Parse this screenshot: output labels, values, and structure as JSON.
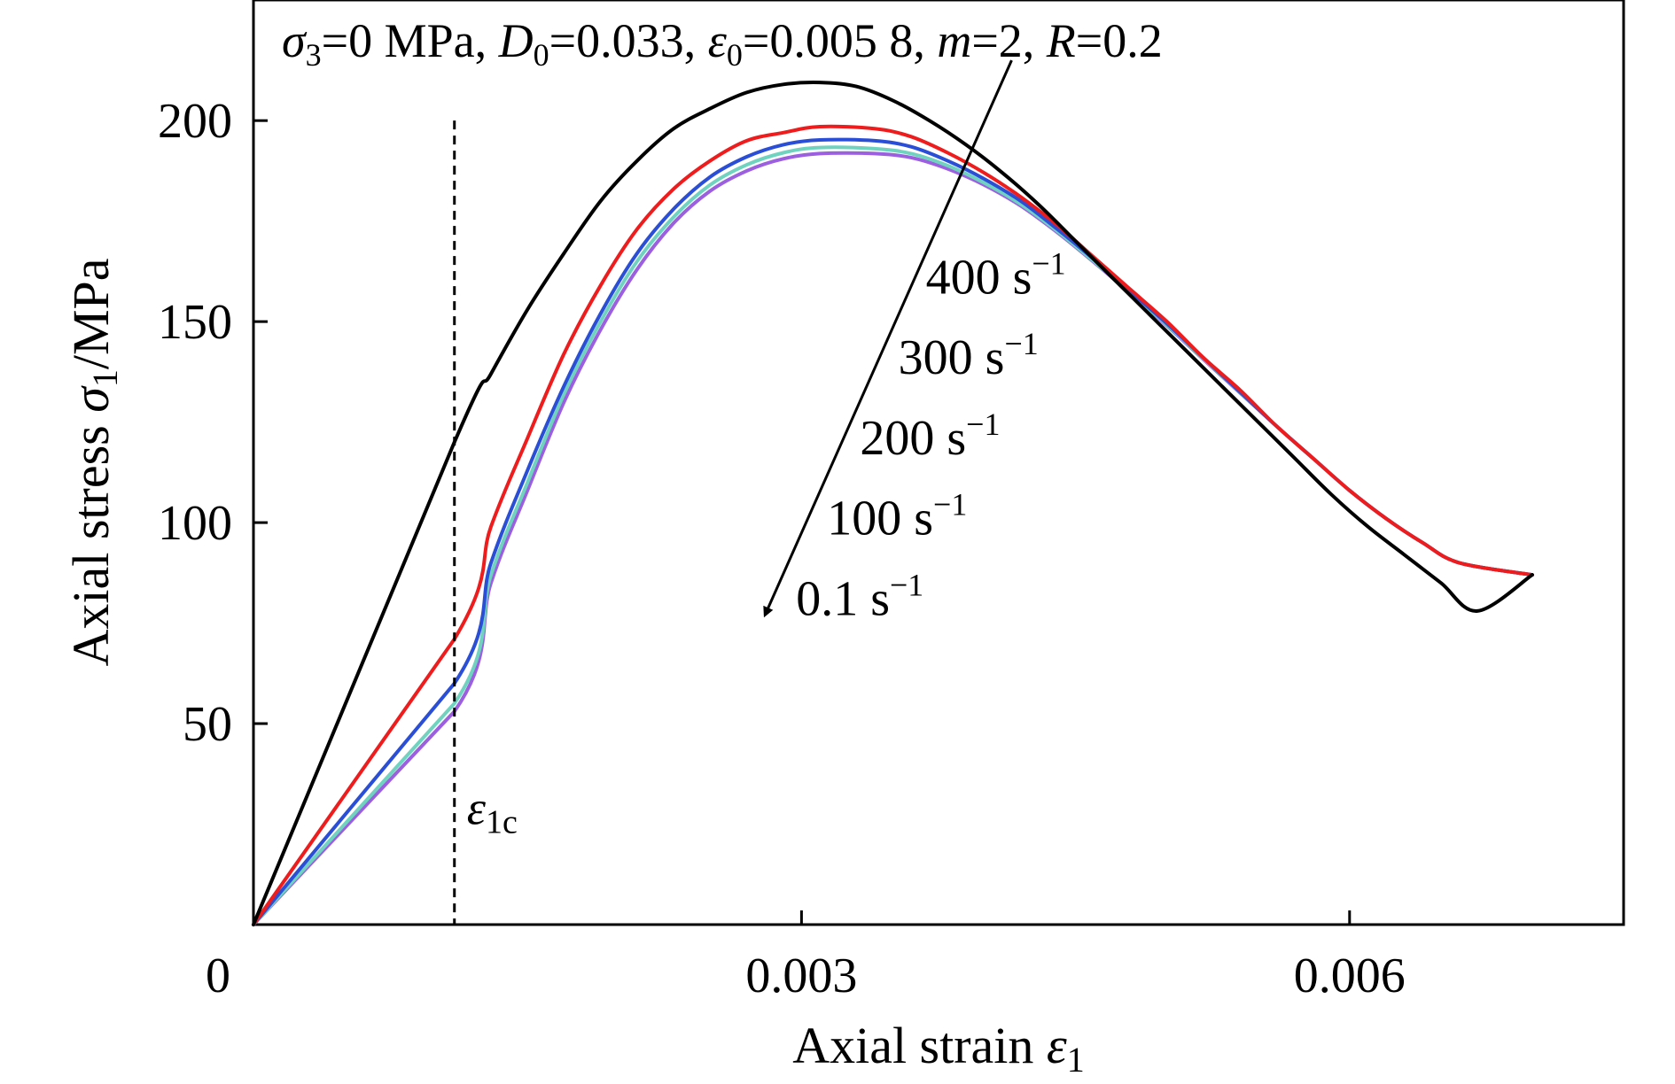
{
  "chart_data": {
    "type": "line",
    "annotation_parameters": {
      "sigma_prefix": "σ",
      "sigma_sub": "3",
      "sigma_value": "=0 MPa, ",
      "D_prefix": "D",
      "D_sub": "0",
      "D_value": "=0.033, ",
      "eps_prefix": "ε",
      "eps_sub": "0",
      "eps_value": "=0.005 8, ",
      "m_prefix": "m",
      "m_value": "=2, ",
      "R_prefix": "R",
      "R_value": "=0.2"
    },
    "xlabel": {
      "text": "Axial strain ",
      "symbol": "ε",
      "sub": "1"
    },
    "ylabel": {
      "text": "Axial stress ",
      "symbol": "σ",
      "sub": "1",
      "unit": "/MPa"
    },
    "xlim": [
      0,
      0.0075
    ],
    "ylim": [
      0,
      230
    ],
    "xticks": [
      {
        "value": 0,
        "label": "0"
      },
      {
        "value": 0.003,
        "label": "0.003"
      },
      {
        "value": 0.006,
        "label": "0.006"
      }
    ],
    "yticks": [
      {
        "value": 50,
        "label": "50"
      },
      {
        "value": 100,
        "label": "100"
      },
      {
        "value": 150,
        "label": "150"
      },
      {
        "value": 200,
        "label": "200"
      }
    ],
    "threshold": {
      "x": 0.0011,
      "label_symbol": "ε",
      "label_sub": "1c",
      "y_top": 200
    },
    "arrow": {
      "from": [
        0.00415,
        215
      ],
      "to": [
        0.0028,
        77
      ]
    },
    "rate_labels": [
      {
        "text": "400 s",
        "sup": "−1",
        "x": 0.00368,
        "y": 157
      },
      {
        "text": "300 s",
        "sup": "−1",
        "x": 0.00353,
        "y": 137
      },
      {
        "text": "200 s",
        "sup": "−1",
        "x": 0.00332,
        "y": 117
      },
      {
        "text": "100 s",
        "sup": "−1",
        "x": 0.00314,
        "y": 97
      },
      {
        "text": "0.1 s",
        "sup": "−1",
        "x": 0.00297,
        "y": 77
      }
    ],
    "series": [
      {
        "color": "#000000",
        "points": [
          [
            0,
            0
          ],
          [
            0.0011,
            120
          ],
          [
            0.0013,
            137
          ],
          [
            0.0015,
            153
          ],
          [
            0.0017,
            167
          ],
          [
            0.0019,
            180
          ],
          [
            0.0021,
            190
          ],
          [
            0.0023,
            198
          ],
          [
            0.0025,
            203
          ],
          [
            0.0027,
            207
          ],
          [
            0.0029,
            209
          ],
          [
            0.0031,
            209.5
          ],
          [
            0.0033,
            208.5
          ],
          [
            0.0035,
            205
          ],
          [
            0.0037,
            200
          ],
          [
            0.0039,
            194
          ],
          [
            0.0041,
            187
          ],
          [
            0.0043,
            179
          ],
          [
            0.0045,
            170
          ],
          [
            0.0047,
            161
          ],
          [
            0.0049,
            152
          ],
          [
            0.0051,
            143
          ],
          [
            0.0053,
            134
          ],
          [
            0.0055,
            125
          ],
          [
            0.0057,
            116
          ],
          [
            0.0059,
            107
          ],
          [
            0.0061,
            99
          ],
          [
            0.0063,
            92
          ],
          [
            0.0065,
            85
          ],
          [
            0.0067,
            78
          ],
          [
            0.007,
            87
          ]
        ]
      },
      {
        "color": "#ee1c1c",
        "points": [
          [
            0,
            0
          ],
          [
            0.0011,
            71
          ],
          [
            0.0013,
            99
          ],
          [
            0.0015,
            121
          ],
          [
            0.0017,
            142
          ],
          [
            0.0019,
            159
          ],
          [
            0.0021,
            173
          ],
          [
            0.0023,
            183
          ],
          [
            0.0025,
            190
          ],
          [
            0.0027,
            195
          ],
          [
            0.0029,
            197
          ],
          [
            0.0031,
            198.5
          ],
          [
            0.0034,
            198
          ],
          [
            0.0036,
            196
          ],
          [
            0.0038,
            192
          ],
          [
            0.004,
            187
          ],
          [
            0.0042,
            181
          ],
          [
            0.0044,
            174
          ],
          [
            0.0046,
            166
          ],
          [
            0.0048,
            158
          ],
          [
            0.005,
            150
          ],
          [
            0.0052,
            141
          ],
          [
            0.0054,
            133
          ],
          [
            0.0056,
            124
          ],
          [
            0.0058,
            116
          ],
          [
            0.006,
            108
          ],
          [
            0.0062,
            101
          ],
          [
            0.0064,
            95
          ],
          [
            0.0066,
            90
          ],
          [
            0.007,
            87
          ]
        ]
      },
      {
        "color": "#2a4fd6",
        "points": [
          [
            0,
            0
          ],
          [
            0.0011,
            60
          ],
          [
            0.0013,
            90
          ],
          [
            0.0015,
            113
          ],
          [
            0.0017,
            134
          ],
          [
            0.0019,
            152
          ],
          [
            0.0021,
            167
          ],
          [
            0.0023,
            178
          ],
          [
            0.0025,
            186
          ],
          [
            0.0027,
            191
          ],
          [
            0.0029,
            194
          ],
          [
            0.0031,
            195.2
          ],
          [
            0.0034,
            195
          ],
          [
            0.0036,
            193.5
          ],
          [
            0.0038,
            190
          ],
          [
            0.004,
            185.5
          ],
          [
            0.0042,
            180
          ],
          [
            0.0044,
            173
          ],
          [
            0.0046,
            165.5
          ],
          [
            0.0048,
            157.5
          ],
          [
            0.005,
            149.5
          ],
          [
            0.0052,
            141
          ],
          [
            0.0054,
            132.5
          ],
          [
            0.0056,
            124
          ],
          [
            0.0058,
            116
          ],
          [
            0.006,
            108
          ],
          [
            0.0062,
            101
          ],
          [
            0.0064,
            95
          ],
          [
            0.0066,
            90
          ],
          [
            0.007,
            87
          ]
        ]
      },
      {
        "color": "#6fd3c0",
        "points": [
          [
            0,
            0
          ],
          [
            0.0011,
            55
          ],
          [
            0.0013,
            87
          ],
          [
            0.0015,
            110
          ],
          [
            0.0017,
            132
          ],
          [
            0.0019,
            150
          ],
          [
            0.0021,
            165
          ],
          [
            0.0023,
            176
          ],
          [
            0.0025,
            184
          ],
          [
            0.0027,
            189
          ],
          [
            0.0029,
            192
          ],
          [
            0.0031,
            193.3
          ],
          [
            0.0034,
            193
          ],
          [
            0.0036,
            191.8
          ],
          [
            0.0038,
            188.8
          ],
          [
            0.004,
            184.5
          ],
          [
            0.0042,
            179.2
          ],
          [
            0.0044,
            172.5
          ],
          [
            0.0046,
            165
          ],
          [
            0.0048,
            157.2
          ],
          [
            0.005,
            149.2
          ],
          [
            0.0052,
            140.8
          ],
          [
            0.0054,
            132.4
          ],
          [
            0.0056,
            124
          ],
          [
            0.0058,
            116
          ],
          [
            0.006,
            108
          ],
          [
            0.0062,
            101
          ],
          [
            0.0064,
            95
          ],
          [
            0.0066,
            90
          ],
          [
            0.007,
            87
          ]
        ]
      },
      {
        "color": "#9b5fe0",
        "points": [
          [
            0,
            0
          ],
          [
            0.0011,
            53
          ],
          [
            0.0013,
            85
          ],
          [
            0.0015,
            108
          ],
          [
            0.0017,
            130
          ],
          [
            0.0019,
            148
          ],
          [
            0.0021,
            163
          ],
          [
            0.0023,
            174.5
          ],
          [
            0.0025,
            182.5
          ],
          [
            0.0027,
            187.5
          ],
          [
            0.0029,
            190.5
          ],
          [
            0.0031,
            191.8
          ],
          [
            0.0034,
            191.8
          ],
          [
            0.0036,
            190.8
          ],
          [
            0.0038,
            188
          ],
          [
            0.004,
            184
          ],
          [
            0.0042,
            178.8
          ],
          [
            0.0044,
            172.2
          ],
          [
            0.0046,
            164.8
          ],
          [
            0.0048,
            157
          ],
          [
            0.005,
            149
          ],
          [
            0.0052,
            140.6
          ],
          [
            0.0054,
            132.3
          ],
          [
            0.0056,
            124
          ],
          [
            0.0058,
            116
          ],
          [
            0.006,
            108
          ],
          [
            0.0062,
            101
          ],
          [
            0.0064,
            95
          ],
          [
            0.0066,
            90
          ],
          [
            0.007,
            87
          ]
        ]
      }
    ]
  }
}
